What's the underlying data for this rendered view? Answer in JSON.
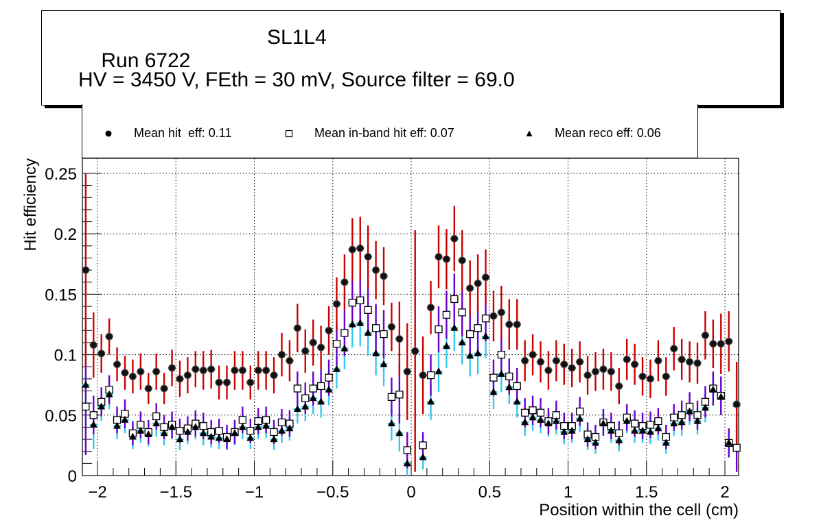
{
  "title": {
    "run": "Run 6722",
    "layer": "SL1L4",
    "conditions": "HV = 3450 V, FEth = 30 mV, Source filter = 69.0"
  },
  "legend": [
    {
      "marker": "filled-circle",
      "label": "Mean hit  eff: 0.11"
    },
    {
      "marker": "open-square",
      "label": "Mean in-band hit eff: 0.07"
    },
    {
      "marker": "filled-triangle",
      "label": "Mean reco eff: 0.06"
    }
  ],
  "colors": {
    "hit_error": "#cc0000",
    "inband_error": "#6a00cc",
    "reco_error": "#33c8f0",
    "marker": "#000000",
    "grid": "#000000"
  },
  "chart_data": {
    "type": "scatter",
    "title": "Run 6722 SL1L4 — HV = 3450 V, FEth = 30 mV, Source filter = 69.0",
    "xlabel": "Position within the cell (cm)",
    "ylabel": "Hit efficiency",
    "xlim": [
      -2.1,
      2.1
    ],
    "ylim": [
      0,
      0.262
    ],
    "xticks": [
      -2,
      -1.5,
      -1,
      -0.5,
      0,
      0.5,
      1,
      1.5,
      2
    ],
    "xtick_labels": [
      "−2",
      "−1.5",
      "−1",
      "−0.5",
      "0",
      "0.5",
      "1",
      "1.5",
      "2"
    ],
    "yticks": [
      0,
      0.05,
      0.1,
      0.15,
      0.2,
      0.25
    ],
    "ytick_labels": [
      "0",
      "0.05",
      "0.1",
      "0.15",
      "0.2",
      "0.25"
    ],
    "grid": true,
    "legend_position": "top",
    "x": [
      -2.075,
      -2.025,
      -1.975,
      -1.925,
      -1.875,
      -1.825,
      -1.775,
      -1.725,
      -1.675,
      -1.625,
      -1.575,
      -1.525,
      -1.475,
      -1.425,
      -1.375,
      -1.325,
      -1.275,
      -1.225,
      -1.175,
      -1.125,
      -1.075,
      -1.025,
      -0.975,
      -0.925,
      -0.875,
      -0.825,
      -0.775,
      -0.725,
      -0.675,
      -0.625,
      -0.575,
      -0.525,
      -0.475,
      -0.425,
      -0.375,
      -0.325,
      -0.275,
      -0.225,
      -0.175,
      -0.125,
      -0.075,
      -0.025,
      0.025,
      0.075,
      0.125,
      0.175,
      0.225,
      0.275,
      0.325,
      0.375,
      0.425,
      0.475,
      0.525,
      0.575,
      0.625,
      0.675,
      0.725,
      0.775,
      0.825,
      0.875,
      0.925,
      0.975,
      1.025,
      1.075,
      1.125,
      1.175,
      1.225,
      1.275,
      1.325,
      1.375,
      1.425,
      1.475,
      1.525,
      1.575,
      1.625,
      1.675,
      1.725,
      1.775,
      1.825,
      1.875,
      1.925,
      1.975,
      2.025,
      2.075
    ],
    "series": [
      {
        "name": "Mean hit  eff: 0.11",
        "marker": "filled-circle",
        "values": [
          0.17,
          0.108,
          0.101,
          0.115,
          0.092,
          0.085,
          0.082,
          0.086,
          0.072,
          0.086,
          0.072,
          0.089,
          0.08,
          0.083,
          0.088,
          0.087,
          0.088,
          0.077,
          0.077,
          0.087,
          0.087,
          0.077,
          0.087,
          0.087,
          0.083,
          0.1,
          0.095,
          0.122,
          0.103,
          0.11,
          0.106,
          0.12,
          0.142,
          0.16,
          0.187,
          0.188,
          0.181,
          0.17,
          0.165,
          0.123,
          0.113,
          0.086,
          0.103,
          0.083,
          0.139,
          0.181,
          0.179,
          0.196,
          0.178,
          0.155,
          0.159,
          0.164,
          0.132,
          0.135,
          0.125,
          0.125,
          0.095,
          0.1,
          0.094,
          0.087,
          0.095,
          0.092,
          0.089,
          0.094,
          0.083,
          0.086,
          0.088,
          0.086,
          0.074,
          0.096,
          0.092,
          0.082,
          0.08,
          0.095,
          0.082,
          0.105,
          0.096,
          0.094,
          0.093,
          0.116,
          0.109,
          0.109,
          0.111,
          0.059
        ],
        "errors": [
          0.08,
          0.027,
          0.016,
          0.015,
          0.014,
          0.014,
          0.014,
          0.015,
          0.013,
          0.015,
          0.013,
          0.015,
          0.015,
          0.015,
          0.015,
          0.016,
          0.016,
          0.014,
          0.014,
          0.016,
          0.016,
          0.014,
          0.016,
          0.016,
          0.015,
          0.018,
          0.017,
          0.02,
          0.018,
          0.019,
          0.018,
          0.02,
          0.022,
          0.023,
          0.026,
          0.026,
          0.026,
          0.024,
          0.024,
          0.02,
          0.031,
          0.04,
          0.1,
          0.032,
          0.022,
          0.026,
          0.025,
          0.027,
          0.025,
          0.023,
          0.024,
          0.023,
          0.021,
          0.022,
          0.021,
          0.021,
          0.017,
          0.017,
          0.017,
          0.016,
          0.017,
          0.017,
          0.016,
          0.017,
          0.016,
          0.016,
          0.017,
          0.016,
          0.015,
          0.017,
          0.017,
          0.016,
          0.016,
          0.017,
          0.016,
          0.018,
          0.017,
          0.017,
          0.017,
          0.02,
          0.02,
          0.025,
          0.025,
          0.035
        ]
      },
      {
        "name": "Mean in-band hit eff: 0.07",
        "marker": "open-square",
        "values": [
          0.057,
          0.05,
          0.061,
          0.071,
          0.046,
          0.051,
          0.035,
          0.042,
          0.036,
          0.049,
          0.04,
          0.042,
          0.037,
          0.039,
          0.043,
          0.041,
          0.036,
          0.037,
          0.032,
          0.036,
          0.046,
          0.037,
          0.045,
          0.046,
          0.036,
          0.044,
          0.043,
          0.072,
          0.064,
          0.072,
          0.074,
          0.081,
          0.109,
          0.118,
          0.143,
          0.145,
          0.137,
          0.122,
          0.117,
          0.065,
          0.067,
          0.021,
          null,
          0.025,
          0.083,
          0.121,
          0.133,
          0.146,
          0.135,
          0.117,
          0.122,
          0.13,
          0.081,
          0.1,
          0.082,
          0.074,
          0.052,
          0.054,
          0.052,
          0.045,
          0.05,
          0.041,
          0.041,
          0.053,
          0.034,
          0.032,
          0.044,
          0.041,
          0.035,
          0.048,
          0.043,
          0.041,
          0.042,
          0.045,
          0.032,
          0.048,
          0.05,
          0.057,
          0.05,
          0.061,
          0.072,
          0.066,
          0.027,
          0.023
        ],
        "errors": [
          0.04,
          0.016,
          0.012,
          0.012,
          0.011,
          0.012,
          0.01,
          0.011,
          0.01,
          0.011,
          0.01,
          0.011,
          0.01,
          0.01,
          0.011,
          0.011,
          0.01,
          0.01,
          0.01,
          0.01,
          0.011,
          0.01,
          0.011,
          0.011,
          0.01,
          0.011,
          0.011,
          0.014,
          0.013,
          0.014,
          0.014,
          0.015,
          0.018,
          0.019,
          0.021,
          0.021,
          0.021,
          0.02,
          0.02,
          0.016,
          0.024,
          0.015,
          null,
          0.011,
          0.017,
          0.019,
          0.02,
          0.021,
          0.02,
          0.019,
          0.019,
          0.019,
          0.015,
          0.016,
          0.015,
          0.015,
          0.012,
          0.012,
          0.012,
          0.011,
          0.012,
          0.011,
          0.011,
          0.012,
          0.01,
          0.01,
          0.011,
          0.011,
          0.01,
          0.011,
          0.011,
          0.011,
          0.011,
          0.011,
          0.01,
          0.011,
          0.012,
          0.012,
          0.012,
          0.013,
          0.014,
          0.016,
          0.012,
          0.02
        ]
      },
      {
        "name": "Mean reco eff: 0.06",
        "marker": "filled-triangle",
        "values": [
          0.075,
          0.042,
          0.057,
          0.067,
          0.041,
          0.046,
          0.032,
          0.037,
          0.034,
          0.043,
          0.035,
          0.04,
          0.03,
          0.036,
          0.04,
          0.035,
          0.032,
          0.031,
          0.03,
          0.035,
          0.04,
          0.031,
          0.04,
          0.041,
          0.03,
          0.037,
          0.039,
          0.055,
          0.057,
          0.064,
          0.061,
          0.071,
          0.088,
          0.105,
          0.125,
          0.126,
          0.118,
          0.101,
          0.092,
          0.043,
          0.035,
          0.01,
          null,
          0.015,
          0.061,
          0.086,
          0.107,
          0.122,
          0.11,
          0.099,
          0.101,
          0.115,
          0.069,
          0.084,
          0.073,
          0.061,
          0.044,
          0.048,
          0.046,
          0.043,
          0.045,
          0.036,
          0.037,
          0.047,
          0.03,
          0.027,
          0.043,
          0.037,
          0.029,
          0.045,
          0.037,
          0.037,
          0.036,
          0.039,
          0.027,
          0.043,
          0.044,
          0.053,
          0.045,
          0.056,
          0.071,
          0.065,
          0.027,
          0.059
        ],
        "errors": [
          0.05,
          0.02,
          0.012,
          0.012,
          0.011,
          0.011,
          0.01,
          0.01,
          0.01,
          0.011,
          0.01,
          0.01,
          0.009,
          0.01,
          0.01,
          0.01,
          0.009,
          0.009,
          0.009,
          0.01,
          0.01,
          0.009,
          0.01,
          0.01,
          0.009,
          0.01,
          0.01,
          0.012,
          0.012,
          0.013,
          0.013,
          0.013,
          0.016,
          0.017,
          0.019,
          0.019,
          0.019,
          0.018,
          0.018,
          0.014,
          0.015,
          0.01,
          null,
          0.01,
          0.015,
          0.017,
          0.018,
          0.019,
          0.018,
          0.017,
          0.017,
          0.018,
          0.014,
          0.015,
          0.014,
          0.013,
          0.011,
          0.011,
          0.011,
          0.011,
          0.011,
          0.01,
          0.01,
          0.011,
          0.009,
          0.009,
          0.01,
          0.01,
          0.009,
          0.01,
          0.01,
          0.01,
          0.01,
          0.01,
          0.009,
          0.01,
          0.011,
          0.011,
          0.011,
          0.012,
          0.013,
          0.015,
          0.012,
          0.035
        ]
      }
    ]
  }
}
